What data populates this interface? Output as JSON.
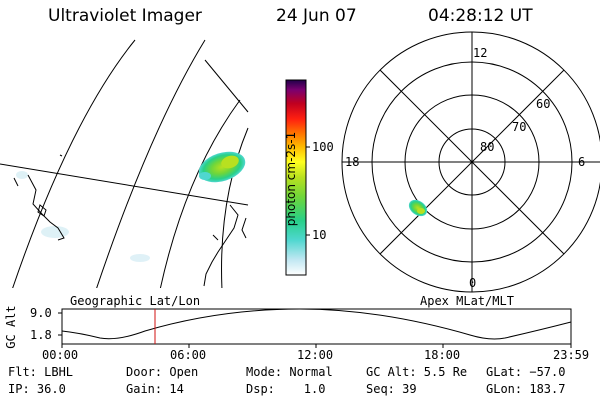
{
  "header": {
    "title": "Ultraviolet Imager",
    "date": "24 Jun 07",
    "time": "04:28:12 UT"
  },
  "colorbar": {
    "label": "photon cm-2s-1",
    "ticks": [
      "100",
      "10"
    ]
  },
  "polar_plot": {
    "mlt_labels": [
      "12",
      "18",
      "6",
      "0"
    ],
    "lat_labels": [
      "60",
      "70",
      "80"
    ]
  },
  "altitude_plot": {
    "ylabel": "GC Alt",
    "y_ticks": [
      "9.0",
      "1.8"
    ],
    "left_title": "Geographic Lat/Lon",
    "right_title": "Apex MLat/MLT",
    "x_ticks": [
      "00:00",
      "06:00",
      "12:00",
      "18:00",
      "23:59"
    ],
    "current_marker_color": "#d01010"
  },
  "info": {
    "flt": "Flt: LBHL",
    "door": "Door: Open",
    "mode": "Mode: Normal",
    "gcalt": "GC Alt: 5.5 Re",
    "glat": "GLat: −57.0",
    "ip": "IP: 36.0",
    "gain": "Gain: 14",
    "dsp": "Dsp:    1.0",
    "seq": "Seq: 39",
    "glon": "GLon: 183.7"
  },
  "colors": {
    "colorbar_stops": [
      "#ffffff",
      "#bfe7f2",
      "#4fd7cf",
      "#28d088",
      "#6fd63a",
      "#b8e020",
      "#ffff20",
      "#ffb800",
      "#ff7000",
      "#ff2010",
      "#c00020",
      "#7a0070",
      "#20004a"
    ]
  }
}
